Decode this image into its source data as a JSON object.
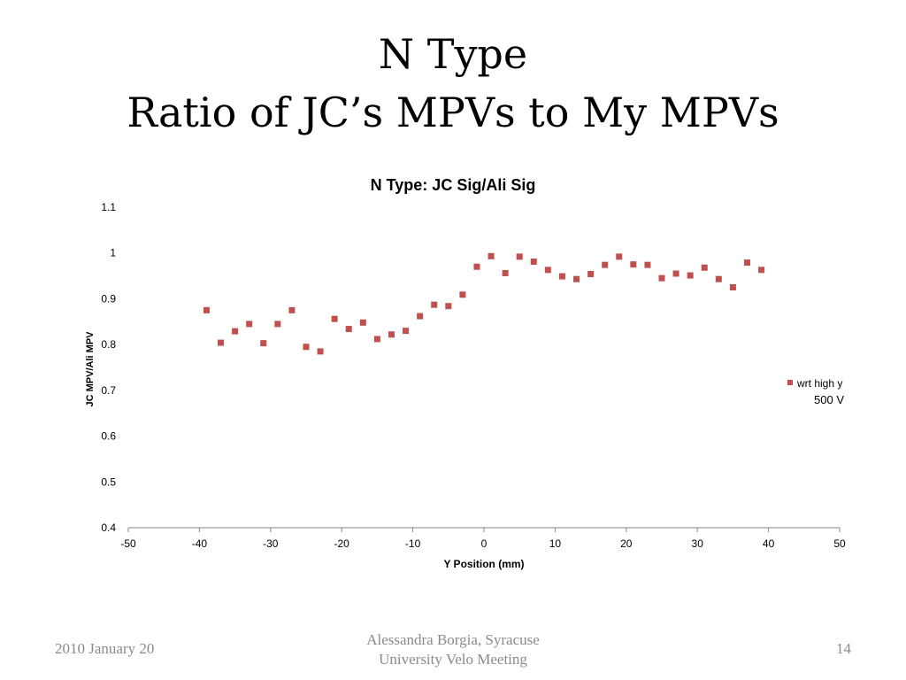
{
  "slide": {
    "title_line1": "N Type",
    "title_line2": "Ratio of JC’s MPVs to My MPVs"
  },
  "footer": {
    "date": "2010 January 20",
    "center_line1": "Alessandra Borgia, Syracuse",
    "center_line2": "University Velo Meeting",
    "page": "14"
  },
  "chart_data": {
    "type": "scatter",
    "title": "N Type: JC Sig/Ali Sig",
    "xlabel": "Y Position (mm)",
    "ylabel": "JC MPV/Ali MPV",
    "xlim": [
      -50,
      50
    ],
    "ylim": [
      0.4,
      1.1
    ],
    "xticks": [
      -50,
      -40,
      -30,
      -20,
      -10,
      0,
      10,
      20,
      30,
      40,
      50
    ],
    "yticks": [
      0.4,
      0.5,
      0.6,
      0.7,
      0.8,
      0.9,
      1,
      1.1
    ],
    "grid": false,
    "legend": {
      "position": "right",
      "label_line1": "wrt high y",
      "label_line2": "500 V"
    },
    "marker_color": "#c0504d",
    "series": [
      {
        "name": "wrt high y 500 V",
        "x": [
          -39,
          -37,
          -35,
          -33,
          -31,
          -29,
          -27,
          -25,
          -23,
          -21,
          -19,
          -17,
          -15,
          -13,
          -11,
          -9,
          -7,
          -5,
          -3,
          -1,
          1,
          3,
          5,
          7,
          9,
          11,
          13,
          15,
          17,
          19,
          21,
          23,
          25,
          27,
          29,
          31,
          33,
          35,
          37,
          39
        ],
        "y": [
          0.875,
          0.804,
          0.829,
          0.845,
          0.803,
          0.845,
          0.875,
          0.795,
          0.785,
          0.856,
          0.834,
          0.848,
          0.812,
          0.822,
          0.83,
          0.862,
          0.887,
          0.884,
          0.909,
          0.97,
          0.993,
          0.956,
          0.992,
          0.981,
          0.963,
          0.949,
          0.943,
          0.954,
          0.974,
          0.992,
          0.975,
          0.974,
          0.945,
          0.955,
          0.951,
          0.968,
          0.943,
          0.925,
          0.979,
          0.963
        ]
      }
    ]
  }
}
